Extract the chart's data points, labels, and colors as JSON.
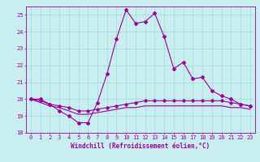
{
  "xlabel": "Windchill (Refroidissement éolien,°C)",
  "background_color": "#c8eef0",
  "grid_color": "#a8dce0",
  "line_color": "#990099",
  "hours": [
    0,
    1,
    2,
    3,
    4,
    5,
    6,
    7,
    8,
    9,
    10,
    11,
    12,
    13,
    14,
    15,
    16,
    17,
    18,
    19,
    20,
    21,
    22,
    23
  ],
  "temp": [
    20.0,
    20.0,
    19.7,
    19.3,
    19.0,
    18.6,
    18.6,
    19.8,
    21.5,
    23.6,
    25.3,
    24.5,
    24.6,
    25.1,
    23.7,
    21.8,
    22.2,
    21.2,
    21.3,
    20.5,
    20.2,
    20.0,
    19.7,
    19.6
  ],
  "windchill": [
    20.0,
    19.9,
    19.7,
    19.6,
    19.5,
    19.3,
    19.3,
    19.4,
    19.5,
    19.6,
    19.7,
    19.8,
    19.9,
    19.9,
    19.9,
    19.9,
    19.9,
    19.9,
    19.9,
    19.9,
    19.9,
    19.8,
    19.7,
    19.6
  ],
  "wc_lower": [
    20.0,
    19.8,
    19.6,
    19.5,
    19.3,
    19.1,
    19.1,
    19.2,
    19.3,
    19.4,
    19.5,
    19.5,
    19.6,
    19.6,
    19.6,
    19.6,
    19.6,
    19.6,
    19.6,
    19.6,
    19.6,
    19.5,
    19.5,
    19.4
  ],
  "ylim": [
    18,
    25.5
  ],
  "yticks": [
    18,
    19,
    20,
    21,
    22,
    23,
    24,
    25
  ],
  "xticks": [
    0,
    1,
    2,
    3,
    4,
    5,
    6,
    7,
    8,
    9,
    10,
    11,
    12,
    13,
    14,
    15,
    16,
    17,
    18,
    19,
    20,
    21,
    22,
    23
  ],
  "tick_fontsize": 5.0,
  "label_fontsize": 5.5
}
